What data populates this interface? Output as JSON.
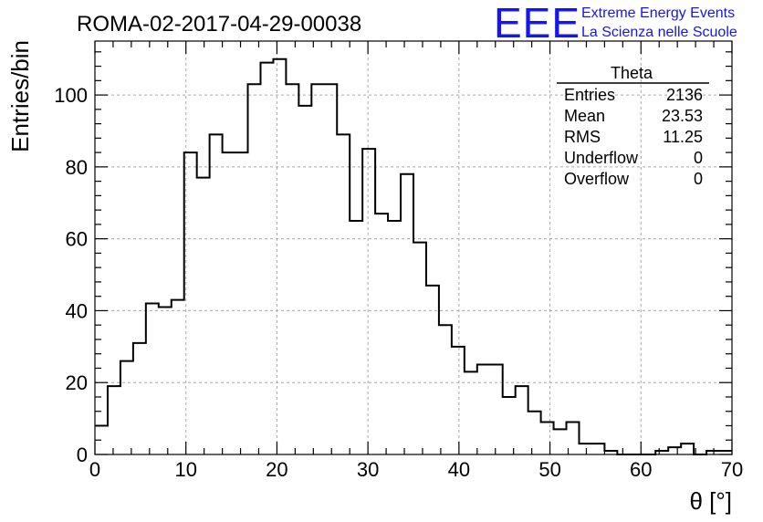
{
  "chart_data": {
    "type": "bar",
    "style": "step-histogram",
    "title": "ROMA-02-2017-04-29-00038",
    "xlabel": "θ [°]",
    "ylabel": "Entries/bin",
    "xlim": [
      0,
      70
    ],
    "ylim": [
      0,
      115
    ],
    "bin_width": 1.4,
    "grid": true,
    "xticks": [
      0,
      10,
      20,
      30,
      40,
      50,
      60,
      70
    ],
    "yticks": [
      0,
      20,
      40,
      60,
      80,
      100
    ],
    "values": [
      8,
      19,
      26,
      31,
      42,
      41,
      43,
      84,
      77,
      89,
      84,
      84,
      103,
      109,
      110,
      103,
      97,
      103,
      103,
      89,
      65,
      85,
      67,
      65,
      78,
      59,
      47,
      36,
      30,
      23,
      25,
      25,
      16,
      19,
      12,
      9,
      7,
      9,
      3,
      3,
      1,
      0,
      0,
      0,
      1,
      2,
      3,
      0,
      1,
      1
    ]
  },
  "stats_box": {
    "name": "Theta",
    "rows": [
      {
        "label": "Entries",
        "value": "2136"
      },
      {
        "label": "Mean",
        "value": "23.53"
      },
      {
        "label": "RMS",
        "value": "11.25"
      },
      {
        "label": "Underflow",
        "value": "0"
      },
      {
        "label": "Overflow",
        "value": "0"
      }
    ]
  },
  "logo": {
    "mark": "EEE",
    "line1": "Extreme Energy Events",
    "line2": "La Scienza nelle Scuole",
    "color": "#1515f0"
  }
}
